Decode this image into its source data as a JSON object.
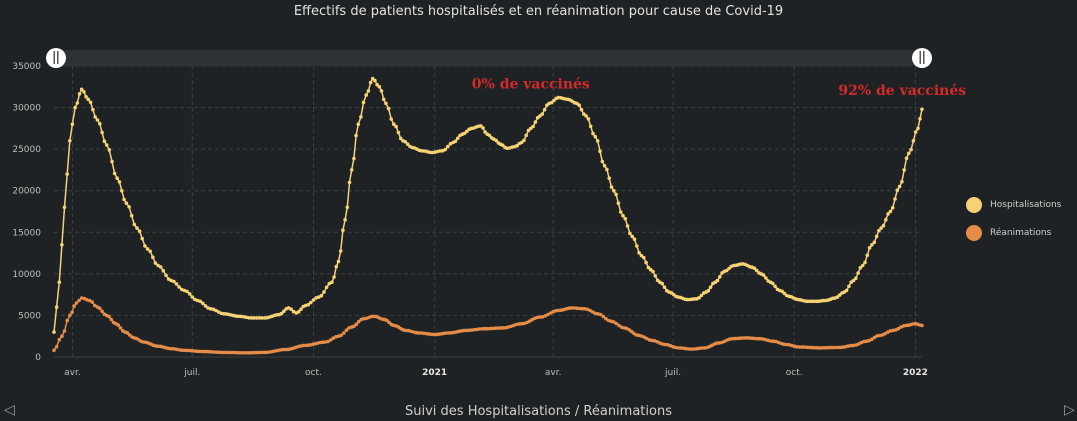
{
  "chart_data": {
    "type": "line",
    "title": "Effectifs de patients hospitalisés et en réanimation pour cause de Covid-19",
    "y_ticks": [
      "0",
      "5000",
      "10000",
      "15000",
      "20000",
      "25000",
      "30000",
      "35000"
    ],
    "ylim": [
      0,
      35000
    ],
    "x_ticks": [
      "avr.",
      "juil.",
      "oct.",
      "2021",
      "avr.",
      "juil.",
      "oct.",
      "2022"
    ],
    "x_tick_dates": [
      "2020-04-01",
      "2020-07-01",
      "2020-10-01",
      "2021-01-01",
      "2021-04-01",
      "2021-07-01",
      "2021-10-01",
      "2022-01-01"
    ],
    "xlim": [
      "2020-03-18",
      "2022-01-06"
    ],
    "grid": true,
    "legend_position": "right",
    "series": [
      {
        "name": "Hospitalisations",
        "color": "#f6d275",
        "points": [
          [
            "2020-03-18",
            3000
          ],
          [
            "2020-03-22",
            9000
          ],
          [
            "2020-03-26",
            18000
          ],
          [
            "2020-03-30",
            26000
          ],
          [
            "2020-04-03",
            30000
          ],
          [
            "2020-04-08",
            32200
          ],
          [
            "2020-04-13",
            31000
          ],
          [
            "2020-04-20",
            28500
          ],
          [
            "2020-04-27",
            25500
          ],
          [
            "2020-05-05",
            21500
          ],
          [
            "2020-05-12",
            18500
          ],
          [
            "2020-05-20",
            15500
          ],
          [
            "2020-05-28",
            13000
          ],
          [
            "2020-06-05",
            11000
          ],
          [
            "2020-06-15",
            9200
          ],
          [
            "2020-06-25",
            8000
          ],
          [
            "2020-07-05",
            6800
          ],
          [
            "2020-07-15",
            5800
          ],
          [
            "2020-07-25",
            5200
          ],
          [
            "2020-08-05",
            4900
          ],
          [
            "2020-08-15",
            4700
          ],
          [
            "2020-08-25",
            4700
          ],
          [
            "2020-09-05",
            5100
          ],
          [
            "2020-09-12",
            5900
          ],
          [
            "2020-09-18",
            5300
          ],
          [
            "2020-09-25",
            6200
          ],
          [
            "2020-10-05",
            7200
          ],
          [
            "2020-10-15",
            9000
          ],
          [
            "2020-10-20",
            11500
          ],
          [
            "2020-10-25",
            16500
          ],
          [
            "2020-10-30",
            22500
          ],
          [
            "2020-11-04",
            28000
          ],
          [
            "2020-11-10",
            31500
          ],
          [
            "2020-11-15",
            33500
          ],
          [
            "2020-11-20",
            32500
          ],
          [
            "2020-11-25",
            30500
          ],
          [
            "2020-12-01",
            28000
          ],
          [
            "2020-12-08",
            26000
          ],
          [
            "2020-12-15",
            25200
          ],
          [
            "2020-12-22",
            24800
          ],
          [
            "2020-12-30",
            24600
          ],
          [
            "2021-01-07",
            24800
          ],
          [
            "2021-01-15",
            25800
          ],
          [
            "2021-01-22",
            26800
          ],
          [
            "2021-01-29",
            27500
          ],
          [
            "2021-02-05",
            27800
          ],
          [
            "2021-02-10",
            26800
          ],
          [
            "2021-02-15",
            26200
          ],
          [
            "2021-02-20",
            25600
          ],
          [
            "2021-02-25",
            25100
          ],
          [
            "2021-03-03",
            25300
          ],
          [
            "2021-03-08",
            25800
          ],
          [
            "2021-03-15",
            27500
          ],
          [
            "2021-03-22",
            29000
          ],
          [
            "2021-03-29",
            30500
          ],
          [
            "2021-04-05",
            31200
          ],
          [
            "2021-04-12",
            31000
          ],
          [
            "2021-04-19",
            30500
          ],
          [
            "2021-04-26",
            29000
          ],
          [
            "2021-05-03",
            26500
          ],
          [
            "2021-05-10",
            23000
          ],
          [
            "2021-05-17",
            20000
          ],
          [
            "2021-05-24",
            17000
          ],
          [
            "2021-05-31",
            14500
          ],
          [
            "2021-06-07",
            12200
          ],
          [
            "2021-06-14",
            10500
          ],
          [
            "2021-06-21",
            9000
          ],
          [
            "2021-06-28",
            7800
          ],
          [
            "2021-07-05",
            7200
          ],
          [
            "2021-07-12",
            6900
          ],
          [
            "2021-07-19",
            7000
          ],
          [
            "2021-07-26",
            7800
          ],
          [
            "2021-08-02",
            9000
          ],
          [
            "2021-08-09",
            10300
          ],
          [
            "2021-08-16",
            11000
          ],
          [
            "2021-08-23",
            11200
          ],
          [
            "2021-08-30",
            10800
          ],
          [
            "2021-09-06",
            10000
          ],
          [
            "2021-09-13",
            9000
          ],
          [
            "2021-09-20",
            8000
          ],
          [
            "2021-09-27",
            7300
          ],
          [
            "2021-10-04",
            6900
          ],
          [
            "2021-10-11",
            6700
          ],
          [
            "2021-10-18",
            6700
          ],
          [
            "2021-10-25",
            6800
          ],
          [
            "2021-11-01",
            7100
          ],
          [
            "2021-11-08",
            7800
          ],
          [
            "2021-11-15",
            9200
          ],
          [
            "2021-11-22",
            11000
          ],
          [
            "2021-11-29",
            13500
          ],
          [
            "2021-12-06",
            15500
          ],
          [
            "2021-12-13",
            17500
          ],
          [
            "2021-12-20",
            20500
          ],
          [
            "2021-12-27",
            24500
          ],
          [
            "2022-01-03",
            27500
          ],
          [
            "2022-01-06",
            29800
          ]
        ]
      },
      {
        "name": "Réanimations",
        "color": "#e58c48",
        "points": [
          [
            "2020-03-18",
            800
          ],
          [
            "2020-03-24",
            2500
          ],
          [
            "2020-03-30",
            5000
          ],
          [
            "2020-04-04",
            6500
          ],
          [
            "2020-04-08",
            7100
          ],
          [
            "2020-04-14",
            6800
          ],
          [
            "2020-04-20",
            6000
          ],
          [
            "2020-04-27",
            5000
          ],
          [
            "2020-05-04",
            4000
          ],
          [
            "2020-05-11",
            3000
          ],
          [
            "2020-05-18",
            2300
          ],
          [
            "2020-05-25",
            1800
          ],
          [
            "2020-06-05",
            1300
          ],
          [
            "2020-06-15",
            1000
          ],
          [
            "2020-06-25",
            800
          ],
          [
            "2020-07-10",
            650
          ],
          [
            "2020-07-25",
            550
          ],
          [
            "2020-08-10",
            500
          ],
          [
            "2020-08-25",
            550
          ],
          [
            "2020-09-10",
            900
          ],
          [
            "2020-09-25",
            1400
          ],
          [
            "2020-10-10",
            1800
          ],
          [
            "2020-10-20",
            2500
          ],
          [
            "2020-10-30",
            3600
          ],
          [
            "2020-11-08",
            4600
          ],
          [
            "2020-11-16",
            4900
          ],
          [
            "2020-11-24",
            4500
          ],
          [
            "2020-12-01",
            3800
          ],
          [
            "2020-12-10",
            3200
          ],
          [
            "2020-12-20",
            2900
          ],
          [
            "2021-01-01",
            2700
          ],
          [
            "2021-01-12",
            2900
          ],
          [
            "2021-01-25",
            3200
          ],
          [
            "2021-02-08",
            3400
          ],
          [
            "2021-02-22",
            3500
          ],
          [
            "2021-03-08",
            4000
          ],
          [
            "2021-03-22",
            4800
          ],
          [
            "2021-04-05",
            5600
          ],
          [
            "2021-04-15",
            5900
          ],
          [
            "2021-04-25",
            5800
          ],
          [
            "2021-05-05",
            5200
          ],
          [
            "2021-05-15",
            4300
          ],
          [
            "2021-05-25",
            3500
          ],
          [
            "2021-06-05",
            2600
          ],
          [
            "2021-06-15",
            2000
          ],
          [
            "2021-06-25",
            1500
          ],
          [
            "2021-07-05",
            1100
          ],
          [
            "2021-07-15",
            950
          ],
          [
            "2021-07-25",
            1100
          ],
          [
            "2021-08-05",
            1700
          ],
          [
            "2021-08-15",
            2200
          ],
          [
            "2021-08-25",
            2300
          ],
          [
            "2021-09-05",
            2200
          ],
          [
            "2021-09-15",
            1900
          ],
          [
            "2021-09-25",
            1500
          ],
          [
            "2021-10-05",
            1200
          ],
          [
            "2021-10-20",
            1100
          ],
          [
            "2021-11-05",
            1150
          ],
          [
            "2021-11-15",
            1400
          ],
          [
            "2021-11-25",
            1900
          ],
          [
            "2021-12-05",
            2600
          ],
          [
            "2021-12-15",
            3200
          ],
          [
            "2021-12-25",
            3800
          ],
          [
            "2022-01-01",
            4000
          ],
          [
            "2022-01-06",
            3800
          ]
        ]
      }
    ],
    "annotations": [
      {
        "text": "0% de vaccinés",
        "date": "2021-03-15",
        "value": 32300,
        "color": "#d42a2a"
      },
      {
        "text": "92% de vaccinés",
        "date": "2021-12-22",
        "value": 31500,
        "color": "#d42a2a"
      }
    ]
  },
  "legend": {
    "hospitalisations": "Hospitalisations",
    "reanimations": "Réanimations"
  },
  "footer": {
    "label": "Suivi des Hospitalisations / Réanimations",
    "prev_icon": "◁",
    "next_icon": "▷"
  },
  "colors": {
    "background": "#1e2224",
    "grid": "#3a3f42",
    "navigator_band": "#2d3234"
  }
}
